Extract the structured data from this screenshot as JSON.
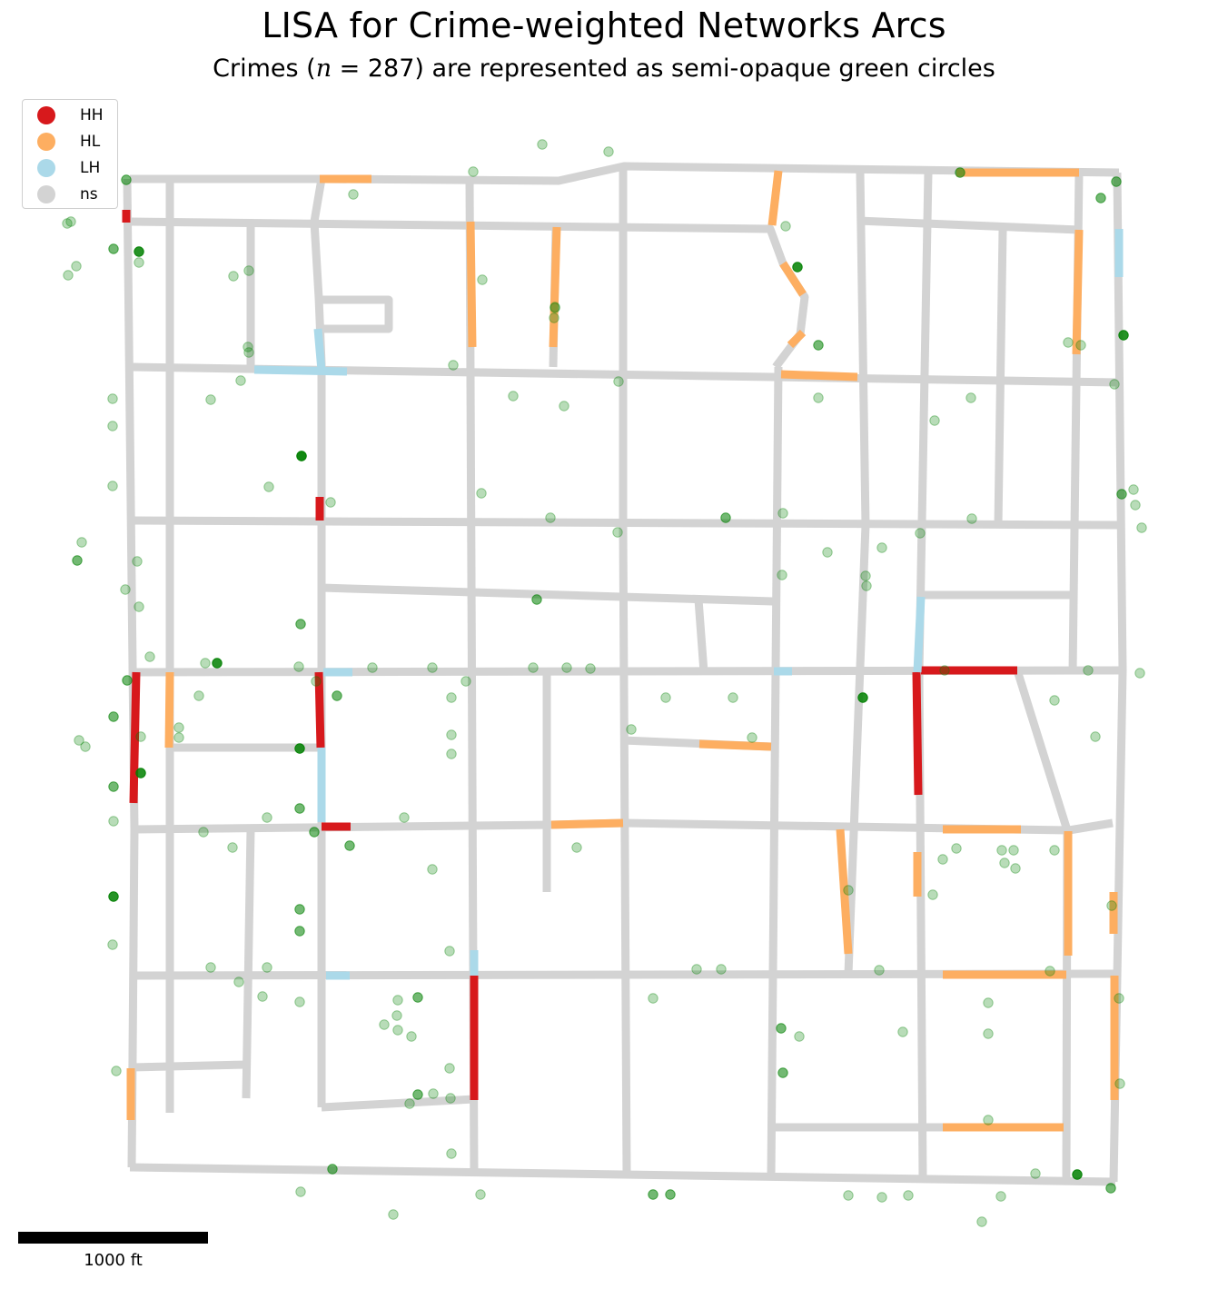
{
  "title": "LISA for Crime-weighted Networks Arcs",
  "subtitle": {
    "prefix": "Crimes (",
    "var": "n",
    "eq": " = 287",
    "suffix": ") are represented as semi-opaque green circles"
  },
  "legend": {
    "items": [
      {
        "label": "HH",
        "color": "#d7191c"
      },
      {
        "label": "HL",
        "color": "#fdae61"
      },
      {
        "label": "LH",
        "color": "#abd9e9"
      },
      {
        "label": "ns",
        "color": "#d3d3d3"
      }
    ]
  },
  "scalebar": {
    "label": "1000 ft"
  },
  "colors": {
    "HH": "#d7191c",
    "HL": "#fdae61",
    "LH": "#abd9e9",
    "ns": "#d3d3d3",
    "crime": "#008000"
  }
}
